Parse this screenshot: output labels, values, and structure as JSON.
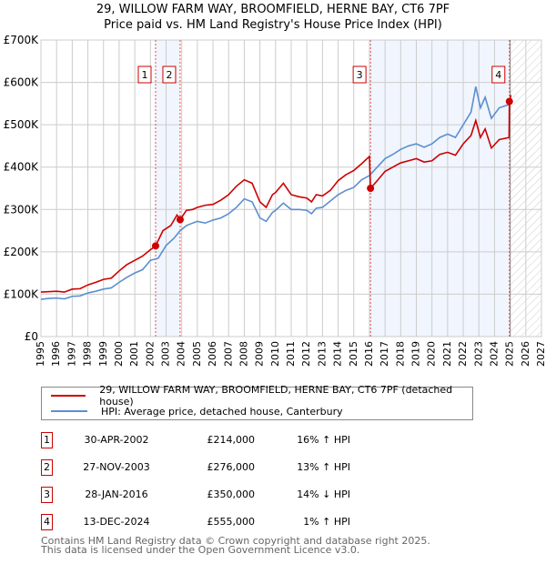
{
  "chart_data": {
    "type": "line",
    "title": "29, WILLOW FARM WAY, BROOMFIELD, HERNE BAY, CT6 7PF",
    "subtitle": "Price paid vs. HM Land Registry's House Price Index (HPI)",
    "xlim": [
      1995,
      2027
    ],
    "ylim": [
      0,
      700000
    ],
    "x_ticks": [
      "1995",
      "1996",
      "1997",
      "1998",
      "1999",
      "2000",
      "2001",
      "2002",
      "2003",
      "2004",
      "2005",
      "2006",
      "2007",
      "2008",
      "2009",
      "2010",
      "2011",
      "2012",
      "2013",
      "2014",
      "2015",
      "2016",
      "2017",
      "2018",
      "2019",
      "2020",
      "2021",
      "2022",
      "2023",
      "2024",
      "2025",
      "2026",
      "2027"
    ],
    "y_ticks": [
      {
        "v": 0,
        "label": "£0"
      },
      {
        "v": 100000,
        "label": "£100K"
      },
      {
        "v": 200000,
        "label": "£200K"
      },
      {
        "v": 300000,
        "label": "£300K"
      },
      {
        "v": 400000,
        "label": "£400K"
      },
      {
        "v": 500000,
        "label": "£500K"
      },
      {
        "v": 600000,
        "label": "£600K"
      },
      {
        "v": 700000,
        "label": "£700K"
      }
    ],
    "grid": true,
    "forecast_start": 2025.0,
    "shaded_ranges": [
      [
        2002.33,
        2003.9
      ],
      [
        2016.07,
        2024.95
      ]
    ],
    "series": [
      {
        "name": "29, WILLOW FARM WAY, BROOMFIELD, HERNE BAY, CT6 7PF (detached house)",
        "color": "#cc0000",
        "points": [
          [
            1995,
            105
          ],
          [
            1996,
            107
          ],
          [
            1996.5,
            105
          ],
          [
            1997,
            112
          ],
          [
            1997.5,
            113
          ],
          [
            1998,
            122
          ],
          [
            1998.5,
            128
          ],
          [
            1999,
            135
          ],
          [
            1999.5,
            138
          ],
          [
            2000,
            155
          ],
          [
            2000.5,
            170
          ],
          [
            2001,
            180
          ],
          [
            2001.5,
            190
          ],
          [
            2002,
            205
          ],
          [
            2002.33,
            214
          ],
          [
            2002.8,
            250
          ],
          [
            2003.3,
            262
          ],
          [
            2003.7,
            287
          ],
          [
            2003.9,
            276
          ],
          [
            2004.3,
            298
          ],
          [
            2004.7,
            300
          ],
          [
            2005,
            305
          ],
          [
            2005.5,
            310
          ],
          [
            2006,
            312
          ],
          [
            2006.5,
            322
          ],
          [
            2007,
            335
          ],
          [
            2007.5,
            355
          ],
          [
            2008,
            370
          ],
          [
            2008.5,
            362
          ],
          [
            2009,
            318
          ],
          [
            2009.4,
            305
          ],
          [
            2009.8,
            335
          ],
          [
            2010,
            340
          ],
          [
            2010.5,
            362
          ],
          [
            2011,
            335
          ],
          [
            2011.5,
            330
          ],
          [
            2012,
            327
          ],
          [
            2012.3,
            318
          ],
          [
            2012.6,
            335
          ],
          [
            2013,
            332
          ],
          [
            2013.5,
            345
          ],
          [
            2014,
            368
          ],
          [
            2014.5,
            382
          ],
          [
            2015,
            392
          ],
          [
            2015.5,
            408
          ],
          [
            2016.0,
            425
          ],
          [
            2016.07,
            350
          ],
          [
            2016.5,
            368
          ],
          [
            2017,
            390
          ],
          [
            2017.5,
            400
          ],
          [
            2018,
            410
          ],
          [
            2018.5,
            415
          ],
          [
            2019,
            420
          ],
          [
            2019.5,
            412
          ],
          [
            2020,
            415
          ],
          [
            2020.5,
            430
          ],
          [
            2021,
            435
          ],
          [
            2021.5,
            428
          ],
          [
            2022,
            455
          ],
          [
            2022.5,
            475
          ],
          [
            2022.8,
            510
          ],
          [
            2023.1,
            470
          ],
          [
            2023.4,
            490
          ],
          [
            2023.8,
            445
          ],
          [
            2024.3,
            465
          ],
          [
            2024.93,
            470
          ],
          [
            2024.95,
            555
          ],
          [
            2025.05,
            570
          ]
        ]
      },
      {
        "name": "HPI: Average price, detached house, Canterbury",
        "color": "#5b8fd0",
        "points": [
          [
            1995,
            88
          ],
          [
            1995.5,
            90
          ],
          [
            1996,
            91
          ],
          [
            1996.5,
            89
          ],
          [
            1997,
            95
          ],
          [
            1997.5,
            96
          ],
          [
            1998,
            103
          ],
          [
            1998.5,
            107
          ],
          [
            1999,
            112
          ],
          [
            1999.5,
            115
          ],
          [
            2000,
            128
          ],
          [
            2000.5,
            140
          ],
          [
            2001,
            150
          ],
          [
            2001.5,
            158
          ],
          [
            2002,
            180
          ],
          [
            2002.5,
            185
          ],
          [
            2003,
            215
          ],
          [
            2003.5,
            232
          ],
          [
            2003.9,
            250
          ],
          [
            2004.3,
            262
          ],
          [
            2004.7,
            268
          ],
          [
            2005,
            272
          ],
          [
            2005.5,
            268
          ],
          [
            2006,
            275
          ],
          [
            2006.5,
            280
          ],
          [
            2007,
            290
          ],
          [
            2007.5,
            305
          ],
          [
            2008,
            325
          ],
          [
            2008.5,
            318
          ],
          [
            2009,
            280
          ],
          [
            2009.4,
            272
          ],
          [
            2009.8,
            293
          ],
          [
            2010,
            298
          ],
          [
            2010.5,
            315
          ],
          [
            2011,
            300
          ],
          [
            2011.5,
            300
          ],
          [
            2012,
            298
          ],
          [
            2012.3,
            290
          ],
          [
            2012.6,
            303
          ],
          [
            2013,
            305
          ],
          [
            2013.5,
            320
          ],
          [
            2014,
            335
          ],
          [
            2014.5,
            345
          ],
          [
            2015,
            352
          ],
          [
            2015.5,
            370
          ],
          [
            2016,
            380
          ],
          [
            2016.5,
            400
          ],
          [
            2017,
            420
          ],
          [
            2017.5,
            430
          ],
          [
            2018,
            442
          ],
          [
            2018.5,
            450
          ],
          [
            2019,
            455
          ],
          [
            2019.5,
            447
          ],
          [
            2020,
            455
          ],
          [
            2020.5,
            470
          ],
          [
            2021,
            478
          ],
          [
            2021.5,
            470
          ],
          [
            2022,
            500
          ],
          [
            2022.5,
            530
          ],
          [
            2022.8,
            590
          ],
          [
            2023.1,
            540
          ],
          [
            2023.4,
            565
          ],
          [
            2023.8,
            515
          ],
          [
            2024.3,
            540
          ],
          [
            2024.95,
            548
          ],
          [
            2025.05,
            552
          ]
        ]
      }
    ],
    "sales": [
      {
        "label": "1",
        "x": 2002.33,
        "value": 214000
      },
      {
        "label": "2",
        "x": 2003.9,
        "value": 276000
      },
      {
        "label": "3",
        "x": 2016.07,
        "value": 350000
      },
      {
        "label": "4",
        "x": 2024.95,
        "value": 555000
      }
    ]
  },
  "legend": {
    "property": "29, WILLOW FARM WAY, BROOMFIELD, HERNE BAY, CT6 7PF (detached house)",
    "hpi": "HPI: Average price, detached house, Canterbury"
  },
  "table": [
    {
      "num": "1",
      "date": "30-APR-2002",
      "price": "£214,000",
      "hpi": "16% ↑ HPI"
    },
    {
      "num": "2",
      "date": "27-NOV-2003",
      "price": "£276,000",
      "hpi": "13% ↑ HPI"
    },
    {
      "num": "3",
      "date": "28-JAN-2016",
      "price": "£350,000",
      "hpi": "14% ↓ HPI"
    },
    {
      "num": "4",
      "date": "13-DEC-2024",
      "price": "£555,000",
      "hpi": "1% ↑ HPI"
    }
  ],
  "footer": {
    "line1": "Contains HM Land Registry data © Crown copyright and database right 2025.",
    "line2": "This data is licensed under the Open Government Licence v3.0."
  }
}
